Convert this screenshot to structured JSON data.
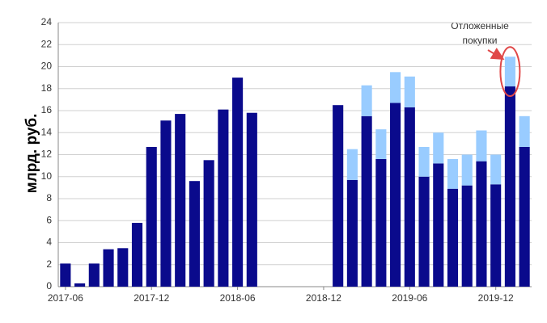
{
  "chart_data": {
    "type": "stacked_bar",
    "y_label": "млрд. руб.",
    "annotation": [
      "Отложенные",
      "покупки"
    ],
    "categories": [
      "2017-06",
      null,
      null,
      null,
      null,
      null,
      "2017-12",
      null,
      null,
      null,
      null,
      null,
      "2018-06",
      null,
      null,
      null,
      null,
      null,
      "2018-12",
      null,
      null,
      null,
      null,
      null,
      "2019-06",
      null,
      null,
      null,
      null,
      null,
      "2019-12",
      null,
      null
    ],
    "series": [
      {
        "color": "#0a0a8c",
        "values": [
          2.1,
          0.3,
          2.1,
          3.4,
          3.5,
          5.8,
          12.7,
          15.1,
          15.7,
          9.6,
          11.5,
          16.1,
          19.0,
          15.8,
          null,
          null,
          null,
          null,
          null,
          16.5,
          9.7,
          15.5,
          11.6,
          16.7,
          16.3,
          10.0,
          11.2,
          8.9,
          9.2,
          11.4,
          9.3,
          18.2,
          12.7
        ]
      },
      {
        "color": "#99ccff",
        "values": [
          null,
          null,
          null,
          null,
          null,
          null,
          null,
          null,
          null,
          null,
          null,
          null,
          null,
          null,
          null,
          null,
          null,
          null,
          null,
          null,
          2.8,
          2.8,
          2.7,
          2.8,
          2.8,
          2.7,
          2.8,
          2.7,
          2.8,
          2.8,
          2.7,
          2.7,
          2.8
        ]
      }
    ],
    "ylim": [
      0,
      24
    ],
    "yticks": [
      0,
      2,
      4,
      6,
      8,
      10,
      12,
      14,
      16,
      18,
      20,
      22,
      24
    ],
    "grid": true
  }
}
